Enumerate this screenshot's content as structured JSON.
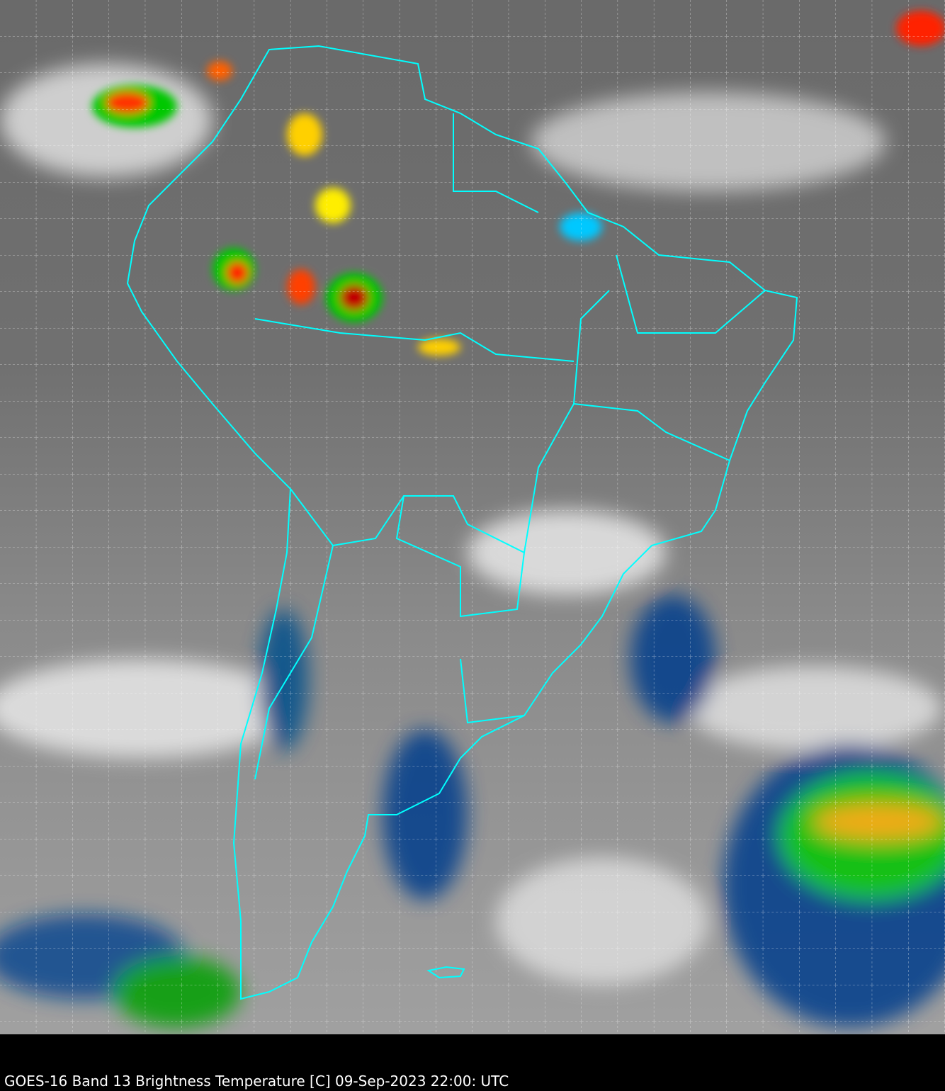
{
  "caption": "GOES-16 Band 13  Brightness Temperature [C] 09-Sep-2023 22:00: UTC",
  "colors": {
    "border_lines": "#00ffff",
    "grid_lines": "#ffffff",
    "background": "#000000",
    "cold_cloud_scale": [
      "#ffffff",
      "#00c8ff",
      "#003c8c",
      "#00c800",
      "#ffff00",
      "#ff0000",
      "#400000"
    ]
  }
}
